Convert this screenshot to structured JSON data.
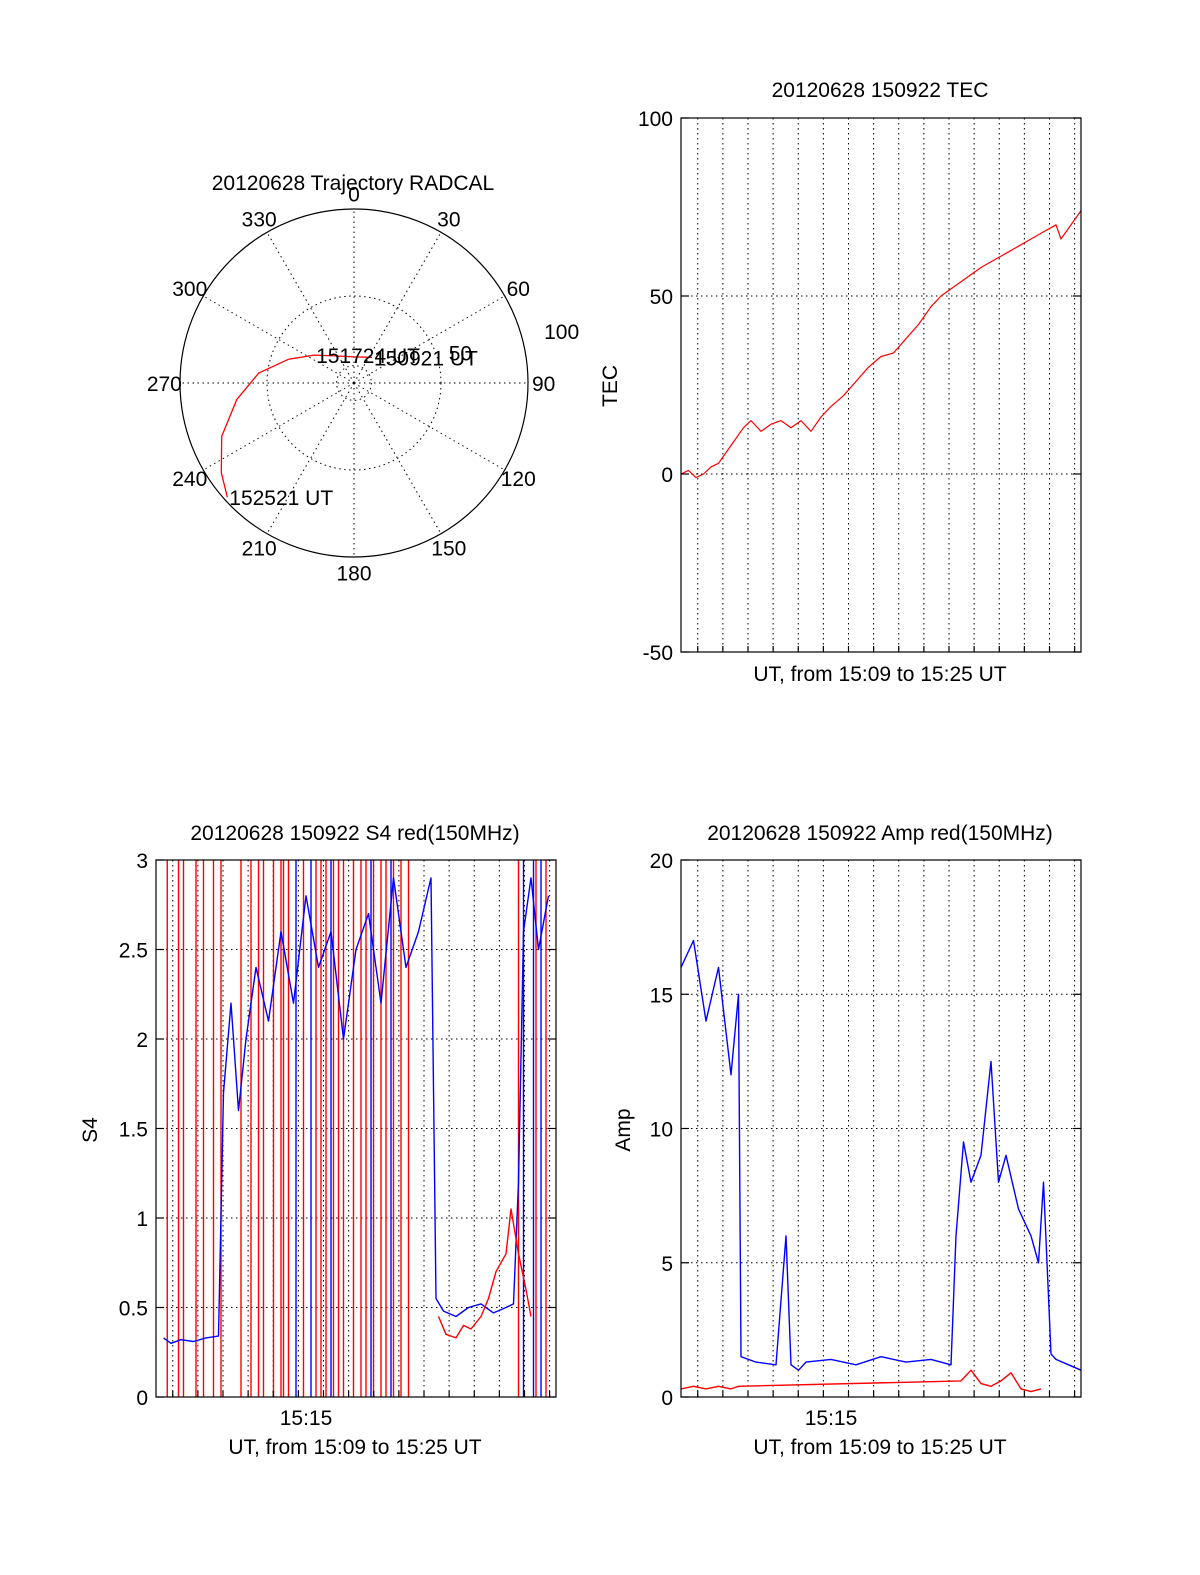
{
  "chart_data": [
    {
      "id": "trajectory",
      "type": "polar",
      "title": "20120628 Trajectory RADCAL",
      "azimuth_labels": [
        "0",
        "30",
        "60",
        "90",
        "120",
        "150",
        "180",
        "210",
        "240",
        "270",
        "300",
        "330"
      ],
      "radial_labels": [
        "50",
        "100"
      ],
      "radial_ticks": [
        50,
        100
      ],
      "r_max": 100,
      "series": [
        {
          "color": "#ff0000",
          "points": [
            {
              "az": 35,
              "r": 18
            },
            {
              "az": 0,
              "r": 15
            },
            {
              "az": -35,
              "r": 19
            },
            {
              "az": -55,
              "r": 28
            },
            {
              "az": -70,
              "r": 40
            },
            {
              "az": -84,
              "r": 55
            },
            {
              "az": -98,
              "r": 68
            },
            {
              "az": -112,
              "r": 82
            },
            {
              "az": -124,
              "r": 92
            },
            {
              "az": -132,
              "r": 98
            }
          ]
        }
      ],
      "annotations": [
        {
          "text": "150921 UT",
          "az": 35,
          "r": 18
        },
        {
          "text": "151724 UT",
          "az": -55,
          "r": 28
        },
        {
          "text": "152521 UT",
          "az": -132,
          "r": 98
        }
      ]
    },
    {
      "id": "tec",
      "type": "line",
      "title": "20120628 150922 TEC",
      "xlabel": "UT, from 15:09 to 15:25 UT",
      "ylabel": "TEC",
      "xlim": [
        0,
        16
      ],
      "ylim": [
        -50,
        100
      ],
      "yticks": [
        -50,
        0,
        50,
        100
      ],
      "x_ticks": [],
      "grid": true,
      "series": [
        {
          "color": "#ff0000",
          "x": [
            0,
            0.3,
            0.6,
            0.9,
            1.2,
            1.5,
            2.0,
            2.5,
            2.8,
            3.2,
            3.6,
            4.0,
            4.4,
            4.8,
            5.2,
            5.6,
            6.0,
            6.5,
            7.0,
            7.5,
            8.0,
            8.5,
            9.0,
            9.5,
            10.0,
            10.4,
            10.8,
            11.2,
            11.6,
            12.0,
            12.5,
            13.0,
            13.5,
            14.0,
            14.5,
            15.0,
            15.2,
            15.5,
            16.0
          ],
          "y": [
            0,
            1,
            -1,
            0,
            2,
            3,
            8,
            13,
            15,
            12,
            14,
            15,
            13,
            15,
            12,
            16,
            19,
            22,
            26,
            30,
            33,
            34,
            38,
            42,
            47,
            50,
            52,
            54,
            56,
            58,
            60,
            62,
            64,
            66,
            68,
            70,
            66,
            69,
            74
          ]
        }
      ]
    },
    {
      "id": "s4",
      "type": "line",
      "title": "20120628 150922 S4 red(150MHz)",
      "xlabel": "UT, from 15:09 to 15:25 UT",
      "ylabel": "S4",
      "xlim": [
        0,
        16
      ],
      "ylim": [
        0,
        3
      ],
      "yticks": [
        0,
        0.5,
        1,
        1.5,
        2,
        2.5,
        3
      ],
      "ytick_labels": [
        "0",
        "0.5",
        "1",
        "1.5",
        "2",
        "2.5",
        "3"
      ],
      "x_ticks": [
        {
          "value": 6,
          "label": "15:15"
        }
      ],
      "grid": true,
      "series": [
        {
          "color": "#0000ff",
          "x": [
            0.3,
            0.6,
            1.0,
            1.5,
            2.0,
            2.5,
            2.7,
            3.0,
            3.3,
            3.6,
            4.0,
            4.5,
            5.0,
            5.5,
            6.0,
            6.5,
            7.0,
            7.5,
            8.0,
            8.5,
            9.0,
            9.5,
            10.0,
            10.5,
            11.0,
            11.2,
            11.5,
            12.0,
            12.5,
            13.0,
            13.5,
            14.0,
            14.3,
            14.5,
            14.7,
            15.0,
            15.3,
            15.7
          ],
          "y": [
            0.33,
            0.3,
            0.32,
            0.31,
            0.33,
            0.34,
            1.7,
            2.2,
            1.6,
            2.0,
            2.4,
            2.1,
            2.6,
            2.2,
            2.8,
            2.4,
            2.6,
            2.0,
            2.5,
            2.7,
            2.2,
            2.9,
            2.4,
            2.6,
            2.9,
            0.55,
            0.48,
            0.45,
            0.5,
            0.52,
            0.47,
            0.5,
            0.52,
            1.2,
            2.6,
            2.9,
            2.5,
            2.8
          ]
        },
        {
          "color": "#ff0000",
          "x": [
            11.3,
            11.6,
            12.0,
            12.3,
            12.6,
            13.0,
            13.3,
            13.6,
            14.0,
            14.2,
            14.5,
            14.8,
            15.0
          ],
          "y": [
            0.45,
            0.35,
            0.33,
            0.4,
            0.38,
            0.45,
            0.55,
            0.7,
            0.8,
            1.05,
            0.8,
            0.6,
            0.45
          ]
        }
      ],
      "red_spikes_x": [
        0.45,
        0.9,
        1.1,
        1.6,
        1.9,
        2.3,
        2.6,
        3.4,
        3.8,
        4.1,
        4.3,
        4.7,
        5.0,
        5.1,
        5.3,
        5.9,
        6.4,
        6.6,
        6.8,
        7.1,
        7.3,
        7.5,
        7.9,
        8.2,
        8.4,
        8.7,
        9.0,
        9.2,
        9.5,
        9.8,
        10.1,
        14.5,
        15.2,
        15.6
      ],
      "blue_spikes_x": [
        5.6,
        6.2,
        7.0,
        8.6,
        9.4,
        14.7,
        15.1,
        15.4
      ]
    },
    {
      "id": "amp",
      "type": "line",
      "title": "20120628 150922 Amp red(150MHz)",
      "xlabel": "UT, from 15:09 to 15:25 UT",
      "ylabel": "Amp",
      "xlim": [
        0,
        16
      ],
      "ylim": [
        0,
        20
      ],
      "yticks": [
        0,
        5,
        10,
        15,
        20
      ],
      "x_ticks": [
        {
          "value": 6,
          "label": "15:15"
        }
      ],
      "grid": true,
      "series": [
        {
          "color": "#0000ff",
          "x": [
            0.0,
            0.5,
            1.0,
            1.5,
            2.0,
            2.3,
            2.4,
            3.0,
            3.8,
            4.2,
            4.4,
            4.7,
            5.0,
            6.0,
            7.0,
            8.0,
            9.0,
            10.0,
            10.8,
            11.0,
            11.3,
            11.6,
            12.0,
            12.4,
            12.7,
            13.0,
            13.5,
            14.0,
            14.3,
            14.5,
            14.8,
            15.0,
            15.5,
            16.0
          ],
          "y": [
            16,
            17,
            14,
            16,
            12,
            15,
            1.5,
            1.3,
            1.2,
            6.0,
            1.2,
            1.0,
            1.3,
            1.4,
            1.2,
            1.5,
            1.3,
            1.4,
            1.2,
            6.0,
            9.5,
            8.0,
            9.0,
            12.5,
            8.0,
            9.0,
            7.0,
            6.0,
            5.0,
            8.0,
            1.6,
            1.4,
            1.2,
            1.0
          ]
        },
        {
          "color": "#ff0000",
          "x": [
            0.0,
            0.5,
            1.0,
            1.5,
            2.0,
            2.3,
            11.2,
            11.6,
            12.0,
            12.4,
            12.8,
            13.2,
            13.6,
            14.0,
            14.4
          ],
          "y": [
            0.3,
            0.4,
            0.3,
            0.4,
            0.3,
            0.4,
            0.6,
            1.0,
            0.5,
            0.4,
            0.6,
            0.9,
            0.3,
            0.2,
            0.3
          ]
        }
      ]
    }
  ]
}
